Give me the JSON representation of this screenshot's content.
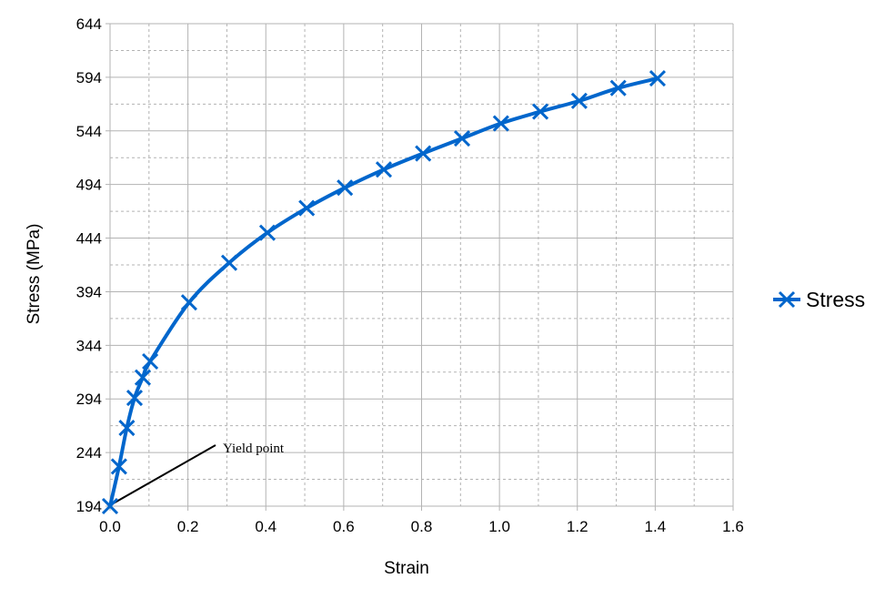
{
  "chart_data": {
    "type": "line",
    "title": "",
    "xlabel": "Strain",
    "ylabel": "Stress (MPa)",
    "xlim": [
      0,
      1.6
    ],
    "ylim": [
      194,
      644
    ],
    "x_ticks": [
      "0.0",
      "0.2",
      "0.4",
      "0.6",
      "0.8",
      "1.0",
      "1.2",
      "1.4",
      "1.6"
    ],
    "y_ticks": [
      "194",
      "244",
      "294",
      "344",
      "394",
      "444",
      "494",
      "544",
      "594",
      "644"
    ],
    "x_tick_values": [
      0,
      0.2,
      0.4,
      0.6,
      0.8,
      1.0,
      1.2,
      1.4,
      1.6
    ],
    "y_tick_values": [
      194,
      244,
      294,
      344,
      394,
      444,
      494,
      544,
      594,
      644
    ],
    "grid": true,
    "minor_grid": true,
    "legend_position": "right",
    "series": [
      {
        "name": "Stress",
        "color": "#0066cc",
        "marker": "x",
        "x": [
          0,
          0.023,
          0.043,
          0.063,
          0.084,
          0.103,
          0.203,
          0.306,
          0.404,
          0.505,
          0.603,
          0.703,
          0.804,
          0.904,
          1.004,
          1.105,
          1.205,
          1.305,
          1.406
        ],
        "y": [
          194,
          231,
          267,
          295,
          314,
          329,
          384,
          421,
          449,
          472,
          491,
          508,
          523,
          537,
          551,
          562,
          572,
          584,
          593
        ]
      }
    ],
    "annotations": [
      {
        "text": "Yield point",
        "points_to": {
          "x": 0,
          "y": 194
        }
      }
    ]
  }
}
